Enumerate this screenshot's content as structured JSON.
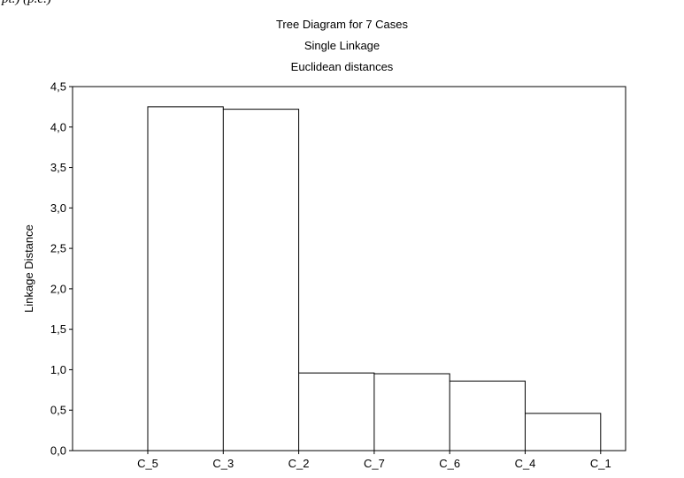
{
  "fragment_text": "pt.) (p.c.)",
  "chart_data": {
    "type": "dendrogram",
    "title": "Tree Diagram for 7 Cases",
    "subtitle_1": "Single Linkage",
    "subtitle_2": "Euclidean distances",
    "xlabel": "",
    "ylabel": "Linkage Distance",
    "ylim": [
      0,
      4.5
    ],
    "yticks": [
      "0,0",
      "0,5",
      "1,0",
      "1,5",
      "2,0",
      "2,5",
      "3,0",
      "3,5",
      "4,0",
      "4,5"
    ],
    "leaves": [
      "C_5",
      "C_3",
      "C_2",
      "C_7",
      "C_6",
      "C_4",
      "C_1"
    ],
    "merges": [
      {
        "left": "C_4",
        "right": "C_1",
        "height": 0.46
      },
      {
        "left": "C_6",
        "right": "C_4+C_1",
        "height": 0.86
      },
      {
        "left": "C_7",
        "right": "C_6+C_4+C_1",
        "height": 0.95
      },
      {
        "left": "C_2",
        "right": "C_7+C_6+C_4+C_1",
        "height": 0.96
      },
      {
        "left": "C_3",
        "right": "C_2+C_7+C_6+C_4+C_1",
        "height": 4.22
      },
      {
        "left": "C_5",
        "right": "C_3+C_2+C_7+C_6+C_4+C_1",
        "height": 4.25
      }
    ],
    "grid": false,
    "legend": "none"
  }
}
